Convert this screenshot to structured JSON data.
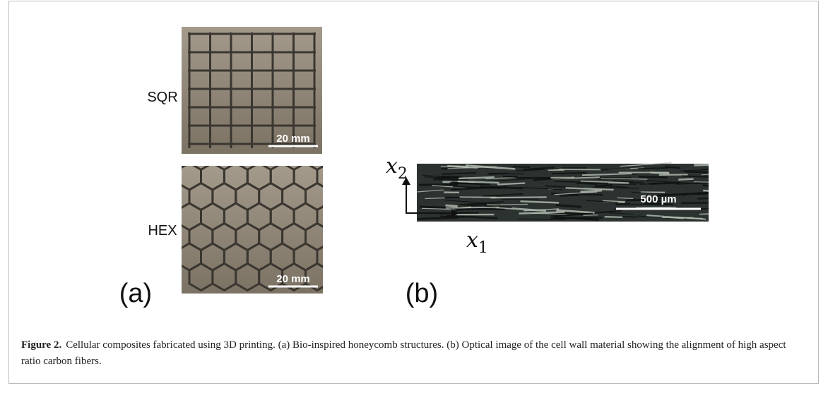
{
  "figure": {
    "panels": [
      {
        "label": "(a)",
        "rows": [
          {
            "name": "SQR",
            "scale_bar": "20 mm"
          },
          {
            "name": "HEX",
            "scale_bar": "20 mm"
          }
        ]
      },
      {
        "label": "(b)",
        "axis_x": "x",
        "axis_x_sub": "1",
        "axis_y": "x",
        "axis_y_sub": "2",
        "scale_bar": "500 µm"
      }
    ],
    "caption": {
      "label": "Figure 2.",
      "text": "Cellular composites fabricated using 3D printing. (a) Bio-inspired honeycomb structures. (b) Optical image of the cell wall material showing the alignment of high aspect ratio carbon fibers."
    }
  }
}
